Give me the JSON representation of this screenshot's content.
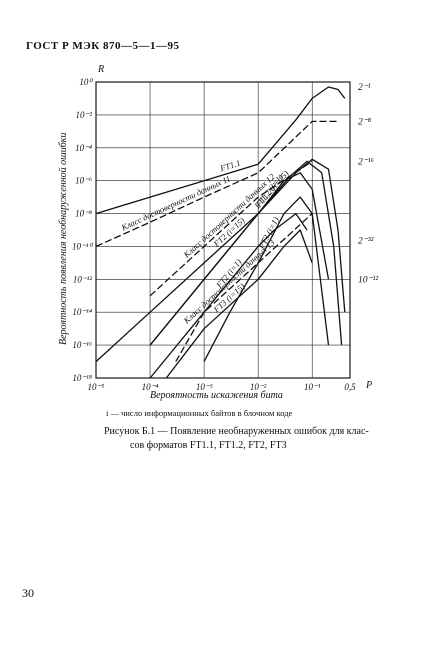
{
  "header": "ГОСТ Р МЭК 870—5—1—95",
  "page_number": "30",
  "note": "i — число информационных байтов в блочном коде",
  "caption_line1": "Рисунок Б.1 — Появление необнаруженных ошибок для клас-",
  "caption_line2": "сов форматов FT1.1, FT1.2, FT2, FT3",
  "chart_data": {
    "type": "line",
    "scale": "log-log",
    "xlabel": "Вероятность искажения бита",
    "ylabel": "Вероятность появления необнаруженной ошибки",
    "x_axis_letter": "P",
    "y_axis_letter": "R",
    "xlim": [
      1e-05,
      0.5
    ],
    "ylim": [
      1e-18,
      1
    ],
    "x_ticks": [
      {
        "value": 1e-05,
        "label": "10⁻⁵"
      },
      {
        "value": 0.0001,
        "label": "10⁻⁴"
      },
      {
        "value": 0.001,
        "label": "10⁻³"
      },
      {
        "value": 0.01,
        "label": "10⁻²"
      },
      {
        "value": 0.1,
        "label": "10⁻¹"
      },
      {
        "value": 0.5,
        "label": "0,5"
      }
    ],
    "y_ticks": [
      {
        "value": 1,
        "label": "10⁰"
      },
      {
        "value": 0.01,
        "label": "10⁻²"
      },
      {
        "value": 0.0001,
        "label": "10⁻⁴"
      },
      {
        "value": 1e-06,
        "label": "10⁻⁶"
      },
      {
        "value": 1e-08,
        "label": "10⁻⁸"
      },
      {
        "value": 1e-10,
        "label": "10⁻¹⁰"
      },
      {
        "value": 1e-12,
        "label": "10⁻¹²"
      },
      {
        "value": 1e-14,
        "label": "10⁻¹⁴"
      },
      {
        "value": 1e-16,
        "label": "10⁻¹⁶"
      },
      {
        "value": 1e-18,
        "label": "10⁻¹⁸"
      }
    ],
    "right_labels": [
      {
        "value": 0.5,
        "label": "2⁻¹"
      },
      {
        "value": 0.004,
        "label": "2⁻⁸"
      },
      {
        "value": 1.5e-05,
        "label": "2⁻¹⁶"
      },
      {
        "value": 2.3e-10,
        "label": "2⁻³²"
      },
      {
        "value": 1e-12,
        "label": "10⁻¹²"
      }
    ],
    "series": [
      {
        "name": "FT1.1",
        "style": "solid",
        "x": [
          1e-05,
          0.0001,
          0.001,
          0.01,
          0.05,
          0.1,
          0.2,
          0.3,
          0.4
        ],
        "y": [
          1e-08,
          1e-07,
          1e-06,
          1e-05,
          0.005,
          0.1,
          0.5,
          0.35,
          0.1
        ]
      },
      {
        "name": "Класс достоверности данных 11",
        "style": "dashed",
        "x": [
          1e-05,
          0.0001,
          0.001,
          0.01,
          0.1,
          0.3
        ],
        "y": [
          1e-10,
          3e-09,
          1e-07,
          3e-06,
          0.004,
          0.004
        ]
      },
      {
        "name": "FT2 (i=15)",
        "style": "solid",
        "x": [
          1e-05,
          0.0001,
          0.001,
          0.01,
          0.05,
          0.1,
          0.2,
          0.3,
          0.4
        ],
        "y": [
          1e-17,
          1e-14,
          1e-11,
          1e-08,
          3e-06,
          2e-05,
          5e-06,
          1e-09,
          1e-14
        ]
      },
      {
        "name": "FT1.2 (i=15)",
        "style": "solid",
        "x": [
          0.0001,
          0.001,
          0.01,
          0.04,
          0.08,
          0.15,
          0.25,
          0.35
        ],
        "y": [
          1e-16,
          1e-12,
          1e-08,
          2e-06,
          1.5e-05,
          3e-06,
          1e-10,
          1e-16
        ]
      },
      {
        "name": "Класс достоверности данных 12",
        "style": "dashed",
        "x": [
          0.0001,
          0.001,
          0.01,
          0.1
        ],
        "y": [
          1e-13,
          1e-10,
          1e-07,
          1.5e-05
        ]
      },
      {
        "name": "FT1.2 (i=1)",
        "style": "solid",
        "x": [
          0.0001,
          0.001,
          0.01,
          0.03,
          0.06,
          0.1,
          0.2
        ],
        "y": [
          1e-16,
          1e-12,
          1e-08,
          1e-06,
          3e-06,
          3e-07,
          1e-12
        ]
      },
      {
        "name": "Класс достоверности данных 13",
        "style": "dashed",
        "x": [
          0.0003,
          0.001,
          0.01,
          0.1
        ],
        "y": [
          1e-17,
          1e-14,
          1e-11,
          1e-08
        ]
      },
      {
        "name": "FT3 (i=1)",
        "style": "solid",
        "x": [
          0.001,
          0.003,
          0.01,
          0.03,
          0.06,
          0.1,
          0.2
        ],
        "y": [
          1e-17,
          1e-14,
          1e-11,
          1e-08,
          1e-07,
          1e-08,
          1e-16
        ]
      },
      {
        "name": "FT2 (i=1)",
        "style": "solid",
        "x": [
          0.0001,
          0.001,
          0.01,
          0.02,
          0.05,
          0.08
        ],
        "y": [
          1e-18,
          1e-14,
          1e-10,
          1e-09,
          1e-08,
          1e-09
        ]
      },
      {
        "name": "FT3 (i=15)",
        "style": "solid",
        "x": [
          0.0002,
          0.001,
          0.01,
          0.03,
          0.06,
          0.1
        ],
        "y": [
          1e-18,
          1e-15,
          1e-12,
          1e-10,
          1e-09,
          1e-11
        ]
      }
    ]
  }
}
